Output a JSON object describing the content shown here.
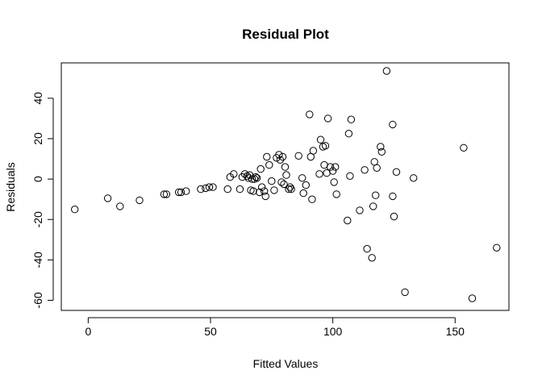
{
  "chart_data": {
    "type": "scatter",
    "title": "Residual Plot",
    "xlabel": "Fitted Values",
    "ylabel": "Residuals",
    "xlim": [
      -11,
      172
    ],
    "ylim": [
      -65,
      57.5
    ],
    "xticks": [
      0,
      50,
      100,
      150
    ],
    "yticks": [
      -60,
      -40,
      -20,
      0,
      20,
      40
    ],
    "grid": false,
    "legend": "none",
    "x": [
      -5.5,
      8,
      13,
      21,
      31,
      32,
      37,
      38,
      40,
      46,
      48,
      49.5,
      51,
      57,
      58,
      59.5,
      62,
      63,
      64,
      65,
      65.5,
      66,
      66.5,
      67,
      67.5,
      68,
      68.5,
      69,
      70,
      70.5,
      71,
      72,
      72.5,
      73,
      74,
      75,
      76,
      77,
      78,
      78.5,
      79,
      79.5,
      80,
      80.5,
      81,
      82,
      82.5,
      83,
      86,
      87.5,
      88,
      89,
      90.5,
      91,
      91.5,
      92,
      94.5,
      95,
      96,
      96.5,
      97,
      97.5,
      98,
      99,
      100,
      100.5,
      101,
      101.5,
      106,
      106.5,
      107,
      107.5,
      111,
      113,
      114,
      116,
      116.5,
      117,
      117.5,
      118,
      119.5,
      120,
      122,
      124.5,
      124.5,
      125,
      126,
      129.5,
      133,
      153.5,
      157,
      167
    ],
    "y": [
      -15,
      -9.5,
      -13.5,
      -10.5,
      -7.5,
      -7.5,
      -6.5,
      -6.5,
      -6,
      -5,
      -4.5,
      -4,
      -4,
      -5,
      1,
      2.5,
      -5,
      1,
      2.5,
      1.5,
      0.5,
      2,
      -5.5,
      0,
      -6,
      0,
      1,
      0.5,
      -6.5,
      5,
      -4,
      -6,
      -8.5,
      11,
      7,
      -1,
      -5.5,
      10.5,
      12,
      9.5,
      -1.5,
      11,
      -2.5,
      6,
      2,
      -5,
      -4,
      -5,
      11.5,
      0.5,
      -7,
      -3,
      32,
      11,
      -10,
      14,
      2.5,
      19.5,
      16,
      7,
      16.5,
      3,
      30,
      6,
      4,
      -1.5,
      6,
      -7.5,
      -20.5,
      22.5,
      1.5,
      29.5,
      -15.5,
      4.5,
      -34.5,
      -39,
      -13.5,
      8.5,
      -8,
      5.5,
      16,
      13.5,
      53.5,
      27,
      -8.5,
      -18.5,
      3.5,
      -56,
      0.5,
      15.5,
      -59,
      -34
    ]
  }
}
